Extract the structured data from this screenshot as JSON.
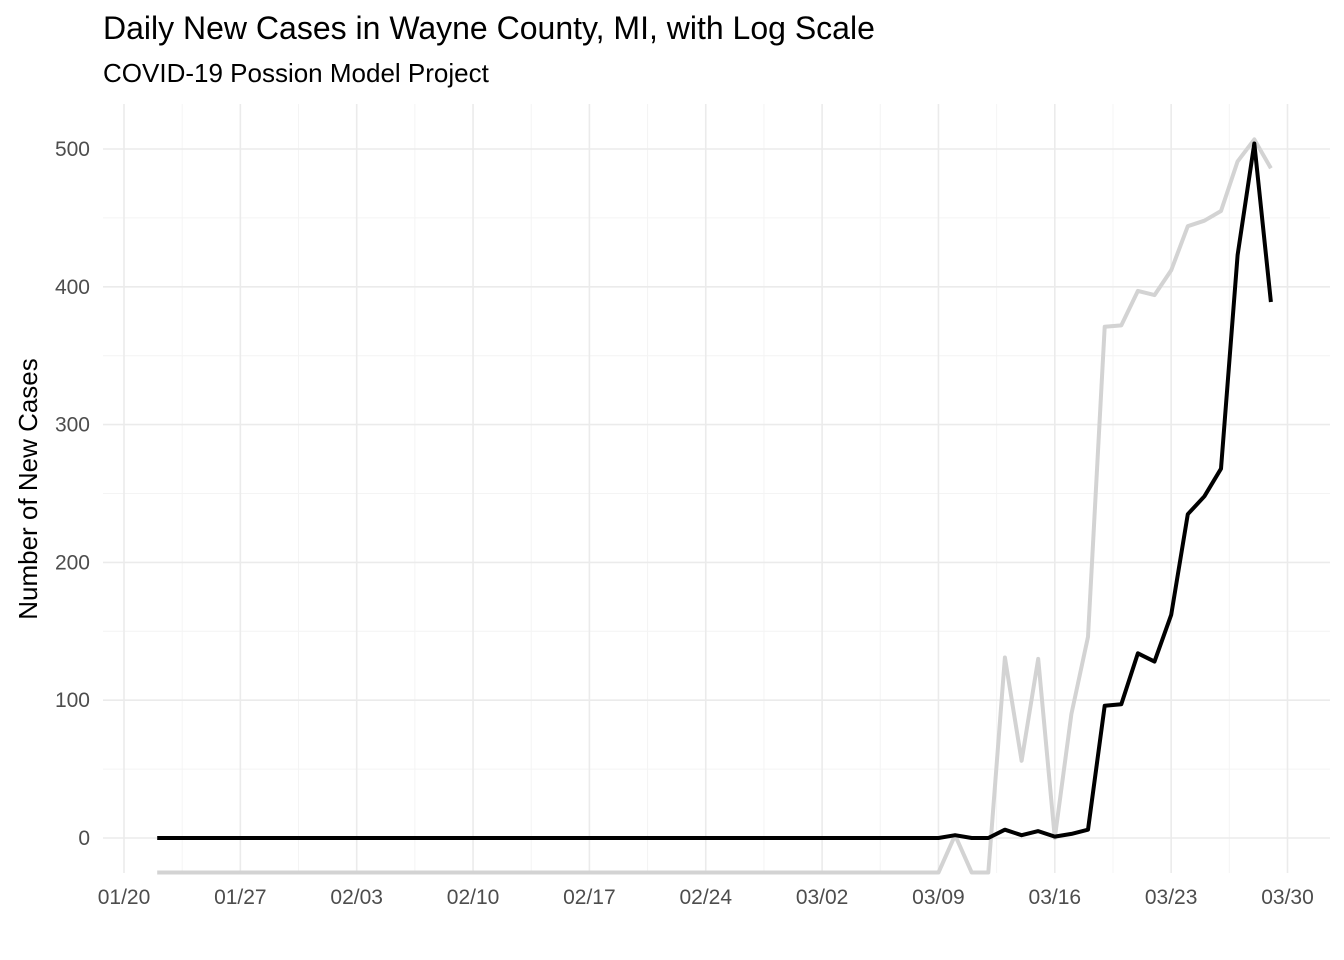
{
  "chart_data": {
    "type": "line",
    "title": "Daily New Cases in Wayne County, MI, with Log Scale",
    "subtitle": "COVID-19 Possion Model Project",
    "xlabel": "",
    "ylabel": "Number of New Cases",
    "x_type": "date",
    "x_ticks": [
      "01/20",
      "01/27",
      "02/03",
      "02/10",
      "02/17",
      "02/24",
      "03/02",
      "03/09",
      "03/16",
      "03/23",
      "03/30"
    ],
    "y_ticks": [
      0,
      100,
      200,
      300,
      400,
      500
    ],
    "ylim": [
      -25,
      530
    ],
    "xlim": [
      "2020-01-20",
      "2020-03-31"
    ],
    "grid": true,
    "legend": "none",
    "series": [
      {
        "color": "#d3d3d3",
        "x": [
          "2020-01-22",
          "2020-03-09",
          "2020-03-10",
          "2020-03-11",
          "2020-03-12",
          "2020-03-13",
          "2020-03-14",
          "2020-03-15",
          "2020-03-16",
          "2020-03-17",
          "2020-03-18",
          "2020-03-19",
          "2020-03-20",
          "2020-03-21",
          "2020-03-22",
          "2020-03-23",
          "2020-03-24",
          "2020-03-25",
          "2020-03-26",
          "2020-03-27",
          "2020-03-28",
          "2020-03-29"
        ],
        "values": [
          -25,
          -25,
          2,
          -25,
          -25,
          131,
          56,
          130,
          0,
          90,
          146,
          371,
          372,
          397,
          394,
          412,
          444,
          448,
          455,
          491,
          507,
          486
        ]
      },
      {
        "color": "#000000",
        "x": [
          "2020-01-22",
          "2020-03-08",
          "2020-03-09",
          "2020-03-10",
          "2020-03-11",
          "2020-03-12",
          "2020-03-13",
          "2020-03-14",
          "2020-03-15",
          "2020-03-16",
          "2020-03-17",
          "2020-03-18",
          "2020-03-19",
          "2020-03-20",
          "2020-03-21",
          "2020-03-22",
          "2020-03-23",
          "2020-03-24",
          "2020-03-25",
          "2020-03-26",
          "2020-03-27",
          "2020-03-28",
          "2020-03-29"
        ],
        "values": [
          0,
          0,
          0,
          2,
          0,
          0,
          6,
          2,
          5,
          1,
          3,
          6,
          96,
          97,
          134,
          128,
          162,
          235,
          248,
          268,
          423,
          504,
          389
        ]
      }
    ]
  }
}
